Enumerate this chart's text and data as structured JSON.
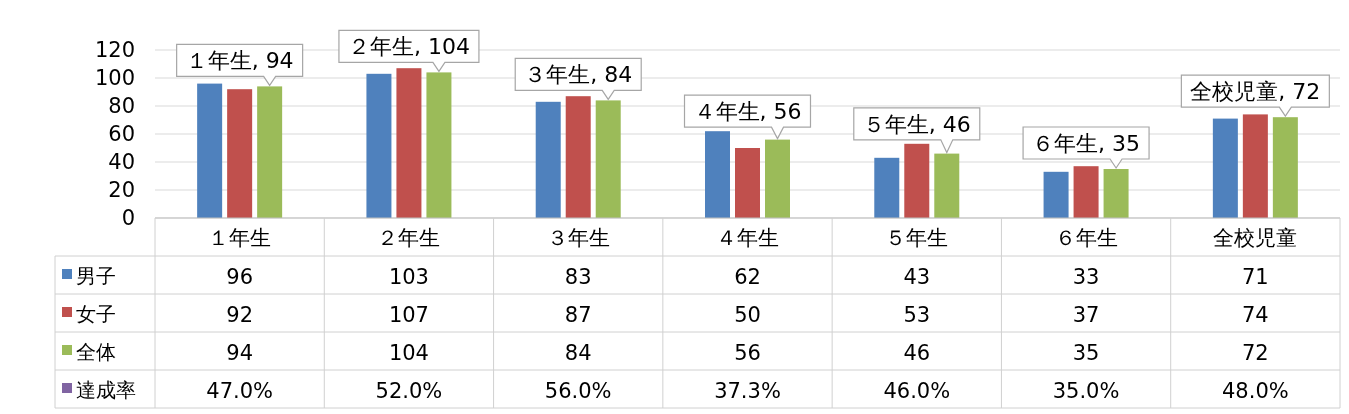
{
  "chart_data": {
    "type": "bar",
    "categories": [
      "１年生",
      "２年生",
      "３年生",
      "４年生",
      "５年生",
      "６年生",
      "全校児童"
    ],
    "series": [
      {
        "name": "男子",
        "color": "#4f81bd",
        "values": [
          96,
          103,
          83,
          62,
          43,
          33,
          71
        ]
      },
      {
        "name": "女子",
        "color": "#c0504d",
        "values": [
          92,
          107,
          87,
          50,
          53,
          37,
          74
        ]
      },
      {
        "name": "全体",
        "color": "#9bbb59",
        "values": [
          94,
          104,
          84,
          56,
          46,
          35,
          72
        ]
      },
      {
        "name": "達成率",
        "color": "#8064a2",
        "values": [
          null,
          null,
          null,
          null,
          null,
          null,
          null
        ],
        "value_labels": [
          "47.0%",
          "52.0%",
          "56.0%",
          "37.3%",
          "46.0%",
          "35.0%",
          "48.0%"
        ]
      }
    ],
    "ylim": [
      0,
      120
    ],
    "yticks": [
      0,
      20,
      40,
      60,
      80,
      100,
      120
    ],
    "grid": "y",
    "data_labels": true,
    "legend": "left",
    "annotations": [
      "１年生, 94",
      "２年生, 104",
      "３年生, 84",
      "４年生, 56",
      "５年生, 46",
      "６年生, 35",
      "全校児童, 72"
    ]
  }
}
